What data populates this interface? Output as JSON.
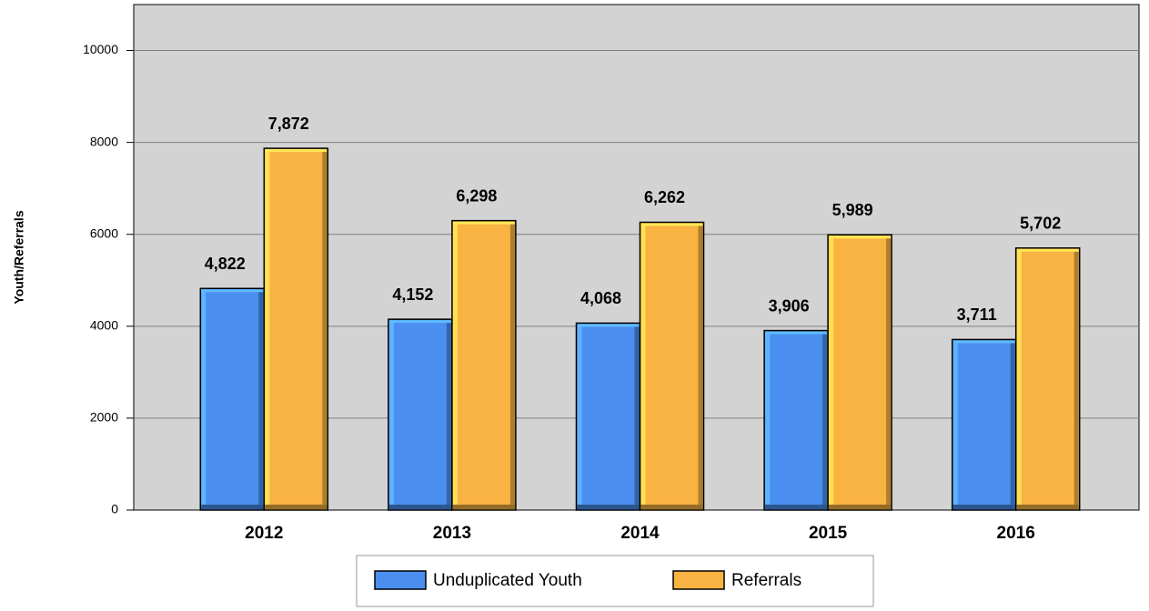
{
  "chart_data": {
    "type": "bar",
    "y_label": "Youth/Referrals",
    "categories": [
      "2012",
      "2013",
      "2014",
      "2015",
      "2016"
    ],
    "series": [
      {
        "name": "Unduplicated Youth",
        "color": "#4a8fef",
        "values": [
          4822,
          4152,
          4068,
          3906,
          3711
        ],
        "value_labels": [
          "4,822",
          "4,152",
          "4,068",
          "3,906",
          "3,711"
        ]
      },
      {
        "name": "Referrals",
        "color": "#f9b342",
        "values": [
          7872,
          6298,
          6262,
          5989,
          5702
        ],
        "value_labels": [
          "7,872",
          "6,298",
          "6,262",
          "5,989",
          "5,702"
        ]
      }
    ],
    "ylim": [
      0,
      11000
    ],
    "yticks": [
      0,
      2000,
      4000,
      6000,
      8000,
      10000
    ],
    "grid": true,
    "legend": "bottom"
  }
}
